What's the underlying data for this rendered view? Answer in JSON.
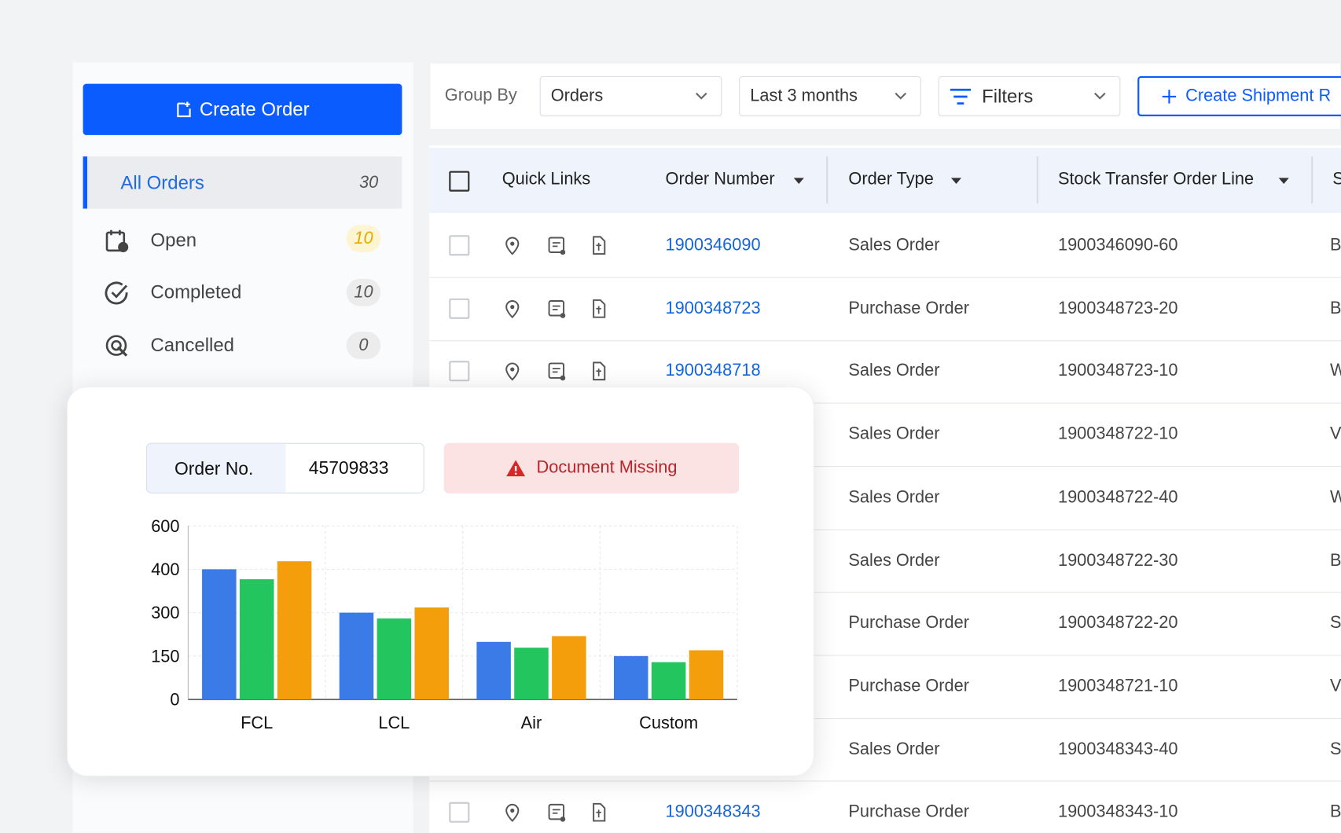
{
  "sidebar": {
    "create_button": "Create Order",
    "items": [
      {
        "label": "All Orders",
        "count": 30
      },
      {
        "label": "Open",
        "count": 10
      },
      {
        "label": "Completed",
        "count": 10
      },
      {
        "label": "Cancelled",
        "count": 0
      }
    ]
  },
  "toolbar": {
    "group_by_label": "Group By",
    "group_by": "Orders",
    "period": "Last 3 months",
    "filters": "Filters",
    "create_shipment": "Create Shipment R"
  },
  "table": {
    "columns": [
      "Quick Links",
      "Order Number",
      "Order Type",
      "Stock Transfer Order Line",
      "S"
    ],
    "rows": [
      {
        "order_number": "1900346090",
        "order_type": "Sales Order",
        "sto_line": "1900346090-60",
        "next": "B"
      },
      {
        "order_number": "1900348723",
        "order_type": "Purchase Order",
        "sto_line": "1900348723-20",
        "next": "B"
      },
      {
        "order_number": "1900348718",
        "order_type": "Sales Order",
        "sto_line": "1900348723-10",
        "next": "W"
      },
      {
        "order_type": "Sales Order",
        "sto_line": "1900348722-10",
        "next": "V"
      },
      {
        "order_type": "Sales Order",
        "sto_line": "1900348722-40",
        "next": "W"
      },
      {
        "order_type": "Sales Order",
        "sto_line": "1900348722-30",
        "next": "B"
      },
      {
        "order_type": "Purchase Order",
        "sto_line": "1900348722-20",
        "next": "S"
      },
      {
        "order_type": "Purchase Order",
        "sto_line": "1900348721-10",
        "next": "V"
      },
      {
        "order_type": "Sales Order",
        "sto_line": "1900348343-40",
        "next": "S"
      },
      {
        "order_number": "1900348343",
        "order_type": "Purchase Order",
        "sto_line": "1900348343-10",
        "next": "B"
      }
    ]
  },
  "card": {
    "order_label": "Order No.",
    "order_number": "45709833",
    "alert": "Document Missing"
  },
  "chart_data": {
    "type": "bar",
    "categories": [
      "FCL",
      "LCL",
      "Air",
      "Custom"
    ],
    "series": [
      {
        "color": "#3b7be8",
        "values": [
          400,
          300,
          199,
          150
        ]
      },
      {
        "color": "#22c55e",
        "values": [
          377,
          280,
          179,
          129
        ]
      },
      {
        "color": "#f59e0b",
        "values": [
          437,
          312,
          219,
          170
        ]
      }
    ],
    "ylim": [
      0,
      600
    ],
    "yticks": [
      0,
      150,
      300,
      400,
      600
    ],
    "grid": true
  }
}
